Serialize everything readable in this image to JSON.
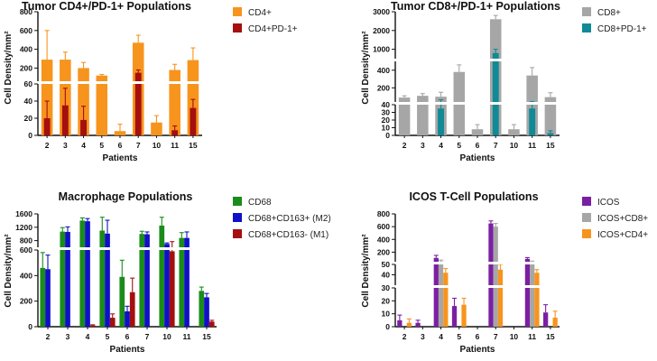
{
  "chart_data": [
    {
      "type": "bar",
      "title": "Tumor CD4+/PD-1+ Populations",
      "xlabel": "Patients",
      "ylabel": "Cell Density/mm²",
      "categories": [
        "2",
        "3",
        "4",
        "5",
        "6",
        "7",
        "10",
        "11",
        "15"
      ],
      "axis_breaks": [
        {
          "ylim": [
            0,
            60
          ],
          "ticks": [
            "0",
            "20",
            "40",
            "60"
          ]
        },
        {
          "ylim": [
            60,
            800
          ],
          "ticks": [
            "200",
            "400",
            "600",
            "800"
          ]
        }
      ],
      "series": [
        {
          "name": "CD4+",
          "color": "#f7941d",
          "values": [
            290,
            290,
            200,
            120,
            5,
            470,
            15,
            180,
            285
          ],
          "errors": [
            310,
            80,
            60,
            12,
            8,
            80,
            8,
            60,
            130
          ]
        },
        {
          "name": "CD4+PD-1+",
          "color": "#a50f0f",
          "values": [
            20,
            35,
            18,
            0,
            0,
            150,
            0,
            6,
            32
          ],
          "errors": [
            20,
            20,
            16,
            0,
            0,
            30,
            0,
            5,
            10
          ]
        }
      ],
      "overlay": true
    },
    {
      "type": "bar",
      "title": "Tumor CD8+/PD-1+ Populations",
      "xlabel": "Patients",
      "ylabel": "Cell Density/mm²",
      "categories": [
        "2",
        "3",
        "4",
        "5",
        "6",
        "7",
        "10",
        "11",
        "15"
      ],
      "axis_breaks": [
        {
          "ylim": [
            0,
            40
          ],
          "ticks": [
            "0",
            "10",
            "20",
            "30",
            "40"
          ]
        },
        {
          "ylim": [
            40,
            500
          ],
          "ticks": [
            "200",
            "400"
          ]
        },
        {
          "ylim": [
            500,
            3000
          ],
          "ticks": [
            "1000",
            "2000",
            "3000"
          ]
        }
      ],
      "series": [
        {
          "name": "CD8+",
          "color": "#a6a6a6",
          "values": [
            90,
            110,
            100,
            380,
            8,
            2600,
            8,
            340,
            95
          ],
          "errors": [
            20,
            25,
            50,
            80,
            6,
            200,
            6,
            90,
            50
          ]
        },
        {
          "name": "CD8+PD-1+",
          "color": "#0f8a96",
          "values": [
            0,
            0,
            35,
            0,
            0,
            800,
            0,
            35,
            3
          ],
          "errors": [
            0,
            0,
            30,
            0,
            0,
            200,
            0,
            10,
            3
          ]
        }
      ],
      "overlay": true
    },
    {
      "type": "bar",
      "title": "Macrophage Populations",
      "xlabel": "Patients",
      "ylabel": "Cell Density/mm²",
      "categories": [
        "2",
        "3",
        "4",
        "5",
        "6",
        "7",
        "10",
        "11",
        "15"
      ],
      "axis_breaks": [
        {
          "ylim": [
            0,
            600
          ],
          "ticks": [
            "0",
            "200",
            "400",
            "600"
          ]
        },
        {
          "ylim": [
            600,
            1600
          ],
          "ticks": [
            "800",
            "1200",
            "1600"
          ]
        }
      ],
      "series": [
        {
          "name": "CD68",
          "color": "#1a8c1a",
          "values": [
            460,
            1070,
            1400,
            1100,
            390,
            1000,
            1250,
            880,
            280
          ],
          "errors": [
            120,
            120,
            80,
            400,
            130,
            80,
            250,
            160,
            30
          ]
        },
        {
          "name": "CD68+CD163+ (M2)",
          "color": "#1010c8",
          "values": [
            450,
            1060,
            1380,
            1010,
            120,
            990,
            700,
            880,
            230
          ],
          "errors": [
            110,
            150,
            80,
            400,
            40,
            70,
            30,
            180,
            30
          ]
        },
        {
          "name": "CD68+CD163- (M1)",
          "color": "#a50f0f",
          "values": [
            0,
            0,
            10,
            70,
            270,
            0,
            590,
            0,
            40
          ],
          "errors": [
            0,
            0,
            5,
            30,
            110,
            0,
            180,
            0,
            10
          ]
        }
      ],
      "overlay": false
    },
    {
      "type": "bar",
      "title": "ICOS T-Cell Populations",
      "xlabel": "Patients",
      "ylabel": "Cell Density/mm²",
      "categories": [
        "2",
        "3",
        "4",
        "5",
        "6",
        "7",
        "10",
        "11",
        "15"
      ],
      "axis_breaks": [
        {
          "ylim": [
            0,
            30
          ],
          "ticks": [
            "0",
            "10",
            "20",
            "30"
          ]
        },
        {
          "ylim": [
            30,
            50
          ],
          "ticks": [
            "40",
            "50"
          ]
        },
        {
          "ylim": [
            50,
            800
          ],
          "ticks": [
            "200",
            "400",
            "600",
            "800"
          ]
        }
      ],
      "series": [
        {
          "name": "ICOS",
          "color": "#7b1fa2",
          "values": [
            5,
            3,
            110,
            16,
            0,
            650,
            0,
            95,
            11
          ],
          "errors": [
            4,
            2,
            40,
            6,
            0,
            40,
            0,
            20,
            6
          ]
        },
        {
          "name": "ICOS+CD8+",
          "color": "#a6a6a6",
          "values": [
            0,
            0,
            55,
            0,
            0,
            600,
            0,
            50,
            0
          ],
          "errors": [
            0,
            0,
            20,
            0,
            0,
            50,
            0,
            10,
            0
          ]
        },
        {
          "name": "ICOS+CD4+",
          "color": "#f7941d",
          "values": [
            3,
            0,
            42,
            17,
            0,
            45,
            0,
            42,
            7
          ],
          "errors": [
            3,
            0,
            4,
            5,
            0,
            5,
            0,
            3,
            5
          ]
        }
      ],
      "overlay": false
    }
  ]
}
